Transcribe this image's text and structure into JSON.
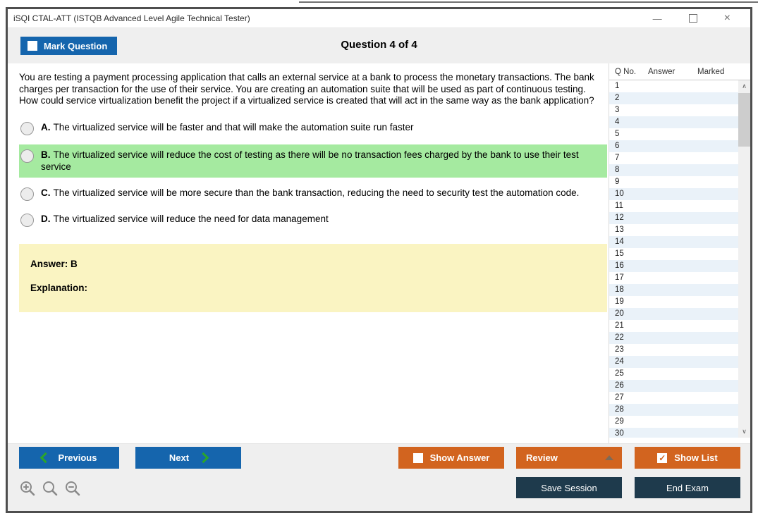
{
  "window": {
    "title": "iSQI CTAL-ATT (ISTQB Advanced Level Agile Technical Tester)",
    "controls": {
      "minimize_glyph": "—",
      "close_glyph": "×"
    }
  },
  "header": {
    "mark_question_label": "Mark Question",
    "question_counter": "Question 4 of 4"
  },
  "question": {
    "text": "You are testing a payment processing application that calls an external service at a bank to process the monetary transactions. The bank charges per transaction for the use of their service. You are creating an automation suite that will be used as part of continuous testing. How could service virtualization benefit the project if a virtualized service is created that will act in the same way as the bank application?",
    "options": [
      {
        "letter": "A.",
        "text": "The virtualized service will be faster and that will make the automation suite run faster",
        "highlighted": false
      },
      {
        "letter": "B.",
        "text": "The virtualized service will reduce the cost of testing as there will be no transaction fees charged by the bank to use their test service",
        "highlighted": true
      },
      {
        "letter": "C.",
        "text": "The virtualized service will be more secure than the bank transaction, reducing the need to security test the automation code.",
        "highlighted": false
      },
      {
        "letter": "D.",
        "text": "The virtualized service will reduce the need for data management",
        "highlighted": false
      }
    ],
    "answer_label": "Answer: B",
    "explanation_label": "Explanation:"
  },
  "question_list": {
    "columns": [
      "Q No.",
      "Answer",
      "Marked"
    ],
    "rows": [
      "1",
      "2",
      "3",
      "4",
      "5",
      "6",
      "7",
      "8",
      "9",
      "10",
      "11",
      "12",
      "13",
      "14",
      "15",
      "16",
      "17",
      "18",
      "19",
      "20",
      "21",
      "22",
      "23",
      "24",
      "25",
      "26",
      "27",
      "28",
      "29",
      "30"
    ]
  },
  "footer": {
    "previous_label": "Previous",
    "next_label": "Next",
    "show_answer_label": "Show Answer",
    "review_label": "Review",
    "show_list_label": "Show List",
    "save_session_label": "Save Session",
    "end_exam_label": "End Exam"
  },
  "icons": {
    "check": "✓",
    "scroll_up": "∧",
    "scroll_down": "∨"
  },
  "colors": {
    "accent_blue": "#1565ad",
    "accent_orange": "#d2641f",
    "dark_navy": "#1e3a4c",
    "highlight_green": "#a5eaa0",
    "answer_box_yellow": "#faf4c2",
    "chevron_green": "#2aa52a",
    "row_stripe_blue": "#eaf2f9"
  }
}
